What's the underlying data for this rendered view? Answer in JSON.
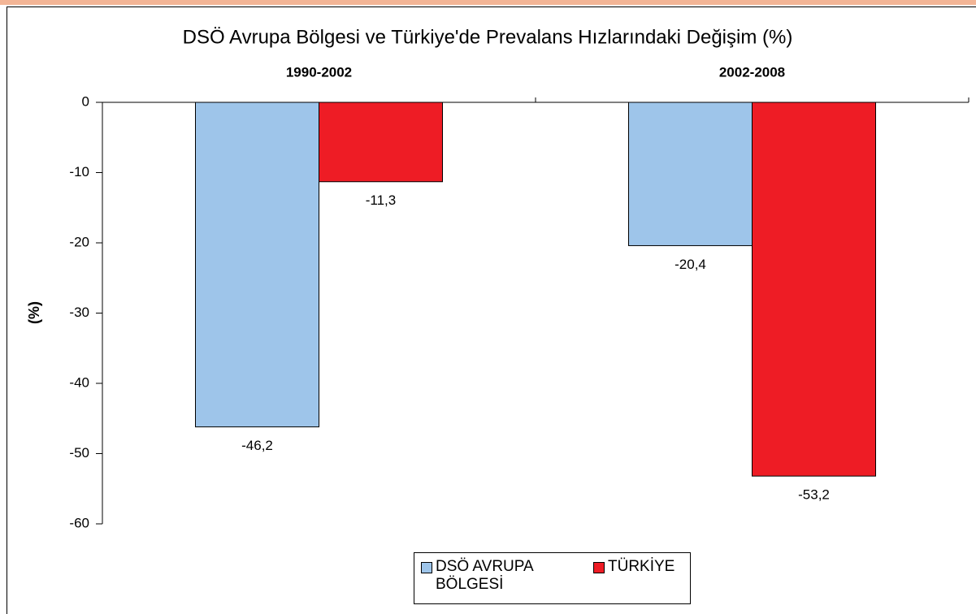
{
  "chart_data": {
    "type": "bar",
    "title": "DSÖ Avrupa Bölgesi ve Türkiye'de Prevalans Hızlarındaki Değişim (%)",
    "y_label": "(%)",
    "categories": [
      "1990-2002",
      "2002-2008"
    ],
    "series": [
      {
        "name": "DSÖ AVRUPA BÖLGESİ",
        "color": "#9ec5ea",
        "values": [
          -46.2,
          -20.4
        ],
        "value_labels": [
          "-46,2",
          "-20,4"
        ]
      },
      {
        "name": "TÜRKİYE",
        "color": "#ee1c25",
        "values": [
          -11.3,
          -53.2
        ],
        "value_labels": [
          "-11,3",
          "-53,2"
        ]
      }
    ],
    "ylim": [
      -60,
      0
    ],
    "yticks": [
      0,
      -10,
      -20,
      -30,
      -40,
      -50,
      -60
    ],
    "legend": "bottom"
  }
}
